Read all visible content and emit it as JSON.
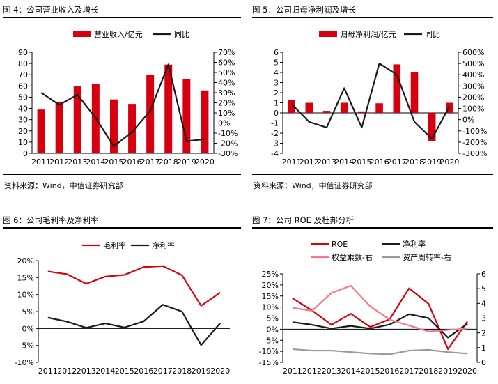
{
  "colors": {
    "red": "#d7000f",
    "black": "#1a1a1a",
    "pink": "#f07a86",
    "gray": "#9a9a9a"
  },
  "years": [
    "2011",
    "2012",
    "2013",
    "2014",
    "2015",
    "2016",
    "2017",
    "2018",
    "2019",
    "2020"
  ],
  "chart_data": [
    {
      "id": "fig4",
      "type": "bar",
      "title": "图 4：公司营业收入及增长",
      "source": "资料来源：Wind，中信证券研究部",
      "categories": [
        "2011",
        "2012",
        "2013",
        "2014",
        "2015",
        "2016",
        "2017",
        "2018",
        "2019",
        "2020"
      ],
      "legend_placement": "top",
      "series": [
        {
          "name": "营业收入/亿元",
          "kind": "bar",
          "axis": "left",
          "color": "red",
          "values": [
            39,
            46,
            60,
            62,
            48,
            44,
            70,
            79,
            66,
            56
          ]
        },
        {
          "name": "同比",
          "kind": "line",
          "axis": "right",
          "color": "black",
          "values": [
            30,
            18,
            28,
            5,
            -23,
            -9,
            12,
            58,
            -18,
            -16
          ]
        }
      ],
      "left_axis": {
        "min": 0,
        "max": 90,
        "ticks": [
          "0",
          "10",
          "20",
          "30",
          "40",
          "50",
          "60",
          "70",
          "80",
          "90"
        ]
      },
      "right_axis": {
        "min": -30,
        "max": 70,
        "ticks": [
          "-30%",
          "-20%",
          "-10%",
          "0%",
          "10%",
          "20%",
          "30%",
          "40%",
          "50%",
          "60%",
          "70%"
        ]
      }
    },
    {
      "id": "fig5",
      "type": "bar",
      "title": "图 5：公司归母净利润及增长",
      "source": "资料来源：Wind，中信证券研究部",
      "categories": [
        "2011",
        "2012",
        "2013",
        "2014",
        "2015",
        "2016",
        "2017",
        "2018",
        "2019",
        "2020"
      ],
      "legend_placement": "top",
      "series": [
        {
          "name": "归母净利润/亿元",
          "kind": "bar",
          "axis": "left",
          "color": "red",
          "values": [
            1.3,
            1.0,
            0.2,
            1.0,
            0.15,
            0.95,
            4.8,
            4.0,
            -2.8,
            1.0
          ]
        },
        {
          "name": "同比",
          "kind": "line",
          "axis": "right",
          "color": "black",
          "values": [
            140,
            -20,
            -70,
            280,
            -70,
            500,
            400,
            -20,
            -170,
            120
          ]
        }
      ],
      "left_axis": {
        "min": -4,
        "max": 6,
        "ticks": [
          "-4",
          "-3",
          "-2",
          "-1",
          "0",
          "1",
          "2",
          "3",
          "4",
          "5",
          "6"
        ]
      },
      "right_axis": {
        "min": -300,
        "max": 600,
        "ticks": [
          "-300%",
          "-200%",
          "-100%",
          "0%",
          "100%",
          "200%",
          "300%",
          "400%",
          "500%",
          "600%"
        ]
      }
    },
    {
      "id": "fig6",
      "type": "line",
      "title": "图 6：公司毛利率及净利率",
      "categories": [
        "2011",
        "2012",
        "2013",
        "2014",
        "2015",
        "2016",
        "2017",
        "2018",
        "2019",
        "2020"
      ],
      "legend_placement": "top",
      "series": [
        {
          "name": "毛利率",
          "axis": "left",
          "color": "red",
          "values": [
            16.8,
            16.0,
            13.2,
            15.3,
            15.8,
            18.1,
            18.4,
            15.7,
            6.7,
            10.6
          ]
        },
        {
          "name": "净利率",
          "axis": "left",
          "color": "black",
          "values": [
            3.2,
            2.0,
            0.2,
            1.5,
            0.3,
            2.1,
            7.0,
            5.0,
            -4.9,
            1.6
          ]
        }
      ],
      "left_axis": {
        "min": -10,
        "max": 20,
        "ticks": [
          "-10%",
          "-5%",
          "0%",
          "5%",
          "10%",
          "15%",
          "20%"
        ]
      }
    },
    {
      "id": "fig7",
      "type": "line",
      "title": "图 7：公司 ROE 及杜邦分析",
      "categories": [
        "2011",
        "2012",
        "2013",
        "2014",
        "2015",
        "2016",
        "2017",
        "2018",
        "2019",
        "2020"
      ],
      "legend_placement": "top",
      "series": [
        {
          "name": "ROE",
          "axis": "left",
          "color": "red",
          "values": [
            14.0,
            8.5,
            2.0,
            7.0,
            1.0,
            4.5,
            18.5,
            11.5,
            -9.0,
            3.5
          ]
        },
        {
          "name": "净利率",
          "axis": "left",
          "color": "black",
          "values": [
            3.2,
            2.0,
            0.3,
            1.5,
            0.3,
            2.1,
            6.8,
            5.0,
            -3.8,
            2.5
          ]
        },
        {
          "name": "权益乘数-右",
          "axis": "right",
          "color": "pink",
          "values": [
            3.7,
            3.5,
            4.7,
            5.2,
            3.8,
            2.9,
            2.5,
            2.1,
            2.2,
            2.3
          ]
        },
        {
          "name": "资产周转率-右",
          "axis": "right",
          "color": "gray",
          "values": [
            0.9,
            0.8,
            0.8,
            0.7,
            0.6,
            0.55,
            0.8,
            0.85,
            0.7,
            0.6
          ]
        }
      ],
      "left_axis": {
        "min": -15,
        "max": 25,
        "ticks": [
          "-15%",
          "-10%",
          "-5%",
          "0%",
          "5%",
          "10%",
          "15%",
          "20%",
          "25%"
        ]
      },
      "right_axis": {
        "min": 0,
        "max": 6,
        "ticks": [
          "0",
          "1",
          "2",
          "3",
          "4",
          "5",
          "6"
        ]
      }
    }
  ]
}
